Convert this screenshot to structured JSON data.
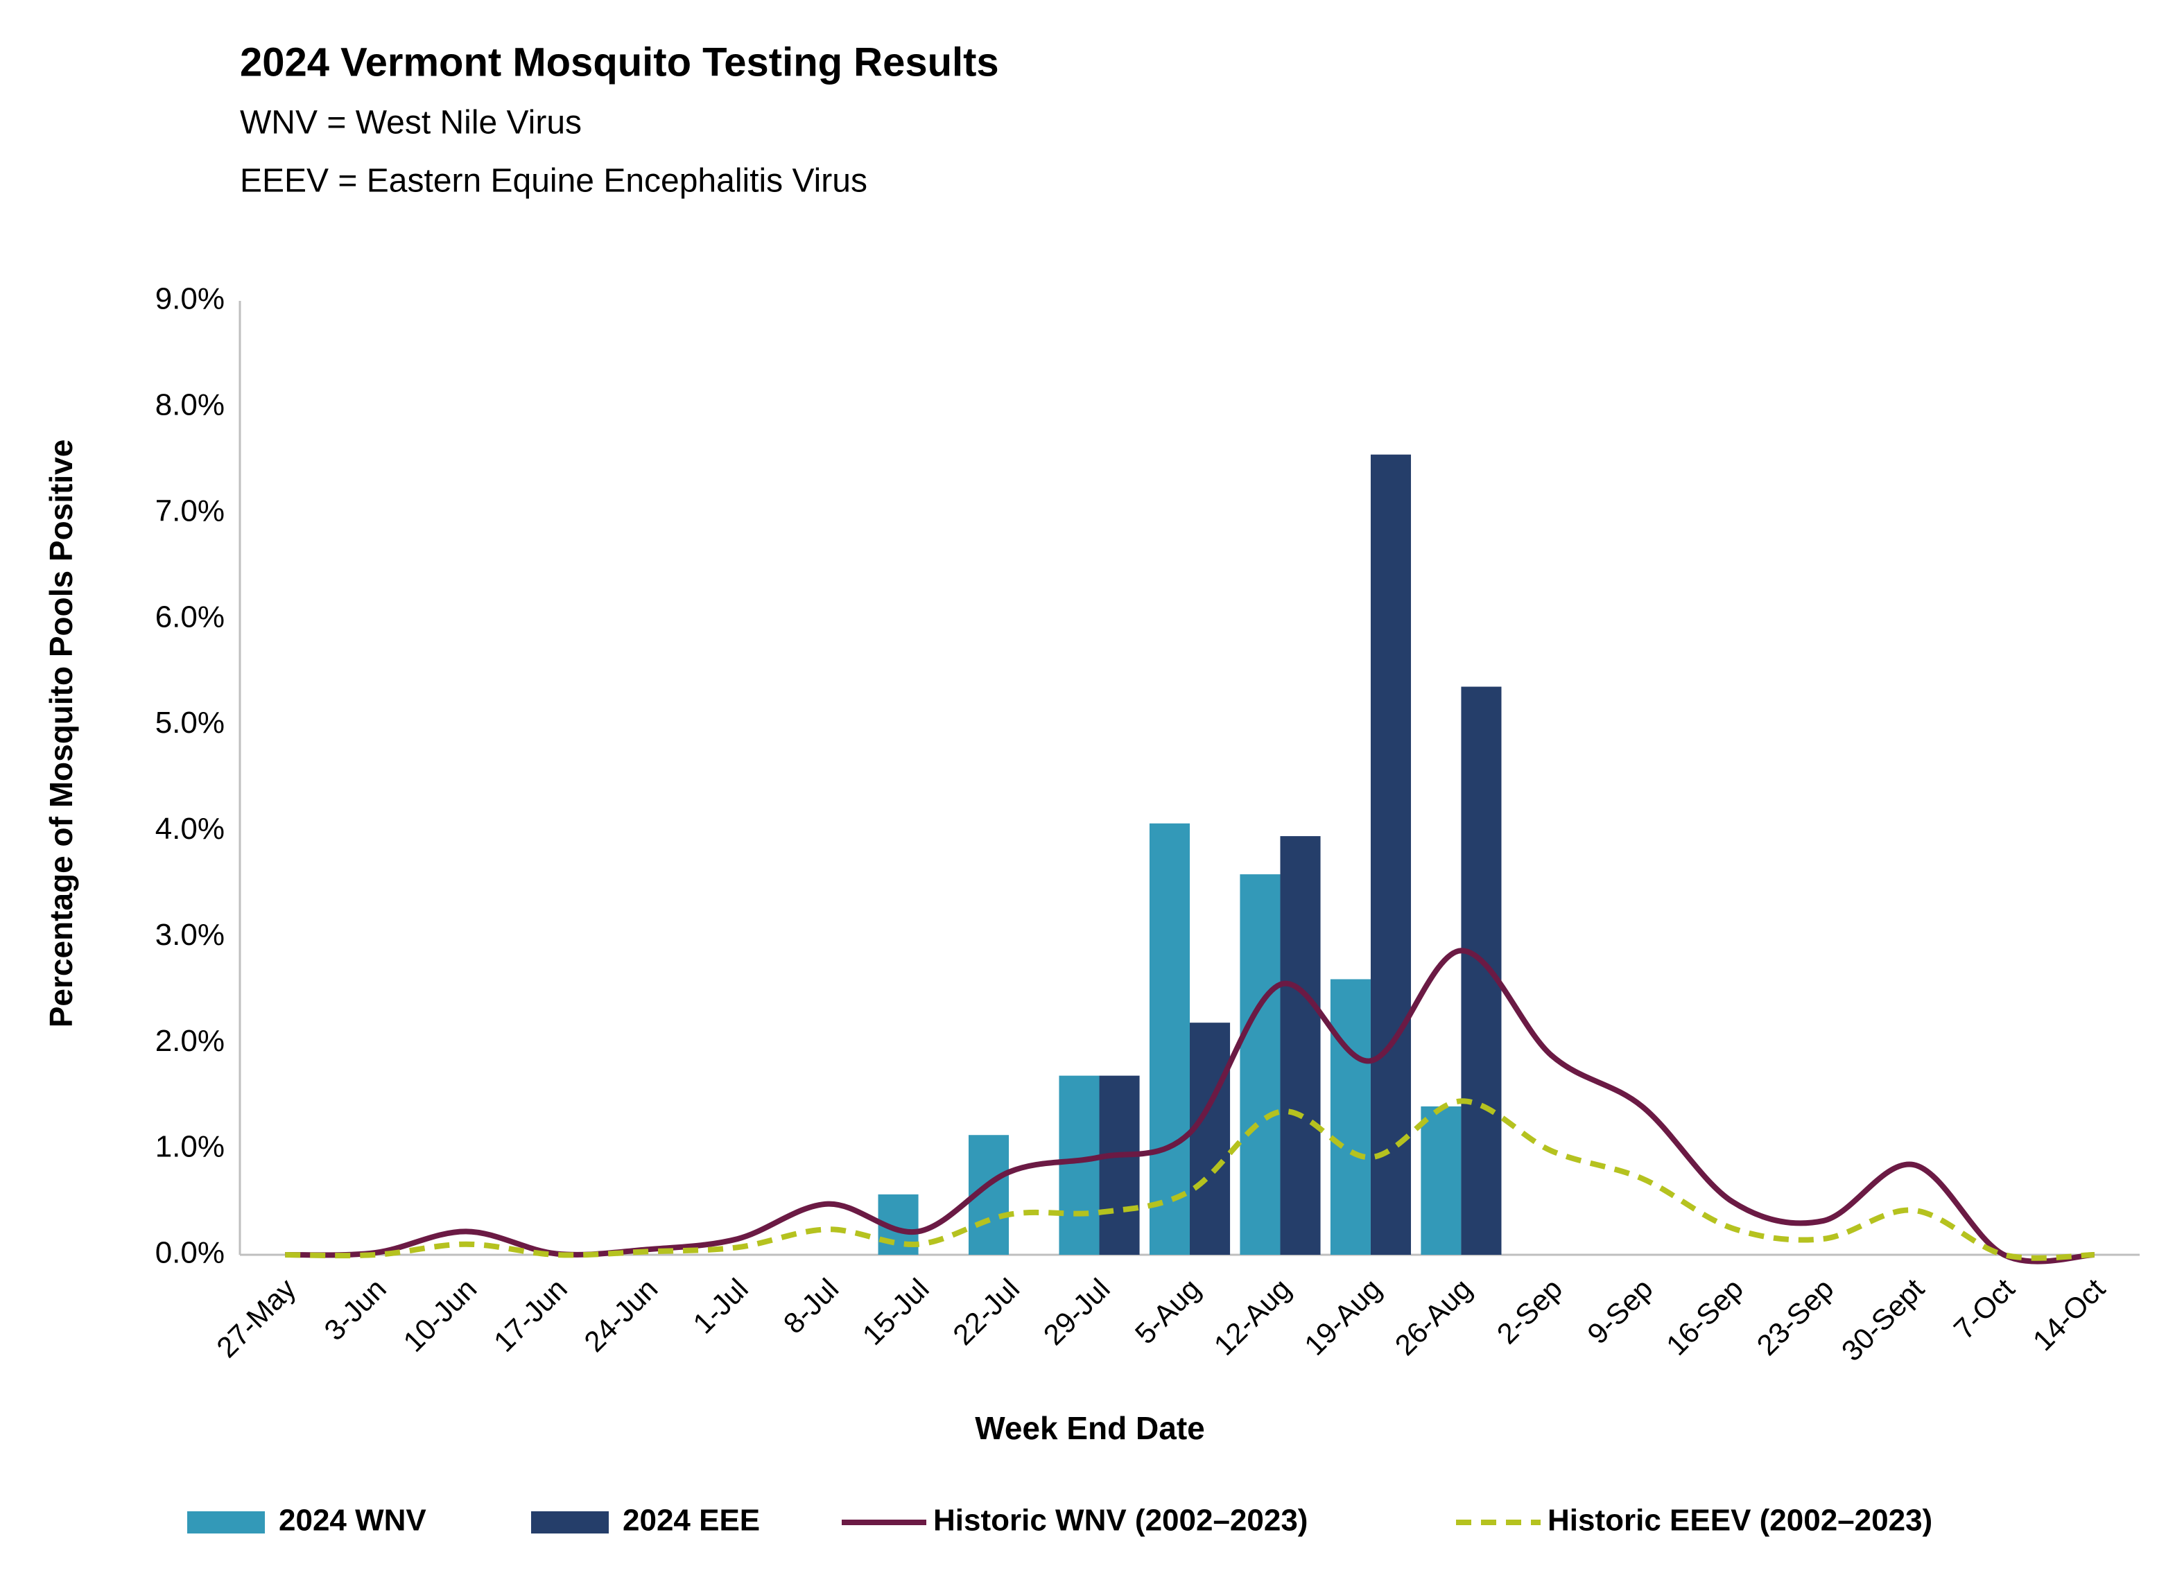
{
  "chart_data": {
    "type": "bar-line",
    "title": "2024 Vermont Mosquito Testing Results",
    "subtitle": [
      "WNV = West Nile Virus",
      "EEEV = Eastern Equine Encephalitis Virus"
    ],
    "x_label": "Week End Date",
    "y_label": "Percentage of Mosquito Pools Positive",
    "categories": [
      "27-May",
      "3-Jun",
      "10-Jun",
      "17-Jun",
      "24-Jun",
      "1-Jul",
      "8-Jul",
      "15-Jul",
      "22-Jul",
      "29-Jul",
      "5-Aug",
      "12-Aug",
      "19-Aug",
      "26-Aug",
      "2-Sep",
      "9-Sep",
      "16-Sep",
      "23-Sep",
      "30-Sept",
      "7-Oct",
      "14-Oct"
    ],
    "series": [
      {
        "name": "2024 WNV",
        "kind": "bar",
        "color": "#3399b8",
        "values": [
          null,
          null,
          null,
          null,
          null,
          null,
          null,
          0.57,
          1.13,
          1.69,
          4.07,
          3.59,
          2.6,
          1.4,
          null,
          null,
          null,
          null,
          null,
          null,
          null
        ]
      },
      {
        "name": "2024 EEE",
        "kind": "bar",
        "color": "#253e6a",
        "values": [
          null,
          null,
          null,
          null,
          null,
          null,
          null,
          null,
          null,
          1.69,
          2.19,
          3.95,
          7.55,
          5.36,
          null,
          null,
          null,
          null,
          null,
          null,
          null
        ]
      },
      {
        "name": "Historic WNV (2002–2023)",
        "kind": "line",
        "dashed": false,
        "color": "#6b1a44",
        "values": [
          0,
          0.02,
          0.22,
          0.01,
          0.05,
          0.15,
          0.48,
          0.22,
          0.78,
          0.92,
          1.15,
          2.55,
          1.83,
          2.87,
          1.88,
          1.4,
          0.5,
          0.32,
          0.85,
          0,
          0
        ]
      },
      {
        "name": "Historic EEEV (2002–2023)",
        "kind": "line",
        "dashed": true,
        "color": "#b5c21f",
        "values": [
          0,
          0,
          0.1,
          0,
          0.03,
          0.07,
          0.24,
          0.1,
          0.38,
          0.4,
          0.6,
          1.35,
          0.92,
          1.45,
          0.98,
          0.72,
          0.25,
          0.15,
          0.42,
          0,
          0
        ]
      }
    ],
    "ylim": [
      0,
      9
    ],
    "yticks": [
      {
        "value": 0,
        "label": "0.0%"
      },
      {
        "value": 1,
        "label": "1.0%"
      },
      {
        "value": 2,
        "label": "2.0%"
      },
      {
        "value": 3,
        "label": "3.0%"
      },
      {
        "value": 4,
        "label": "4.0%"
      },
      {
        "value": 5,
        "label": "5.0%"
      },
      {
        "value": 6,
        "label": "6.0%"
      },
      {
        "value": 7,
        "label": "7.0%"
      },
      {
        "value": 8,
        "label": "8.0%"
      },
      {
        "value": 9,
        "label": "9.0%"
      }
    ],
    "grid": false,
    "legend": "bottom"
  }
}
